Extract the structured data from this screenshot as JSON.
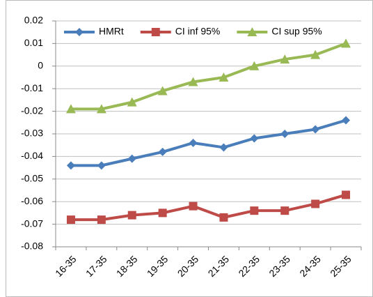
{
  "chart_data": {
    "type": "line",
    "categories": [
      "16-35",
      "17-35",
      "18-35",
      "19-35",
      "20-35",
      "21-35",
      "22-35",
      "23-35",
      "24-35",
      "25-35"
    ],
    "series": [
      {
        "name": "HMRt",
        "color": "#4a7ebb",
        "marker": "diamond",
        "values": [
          -0.044,
          -0.044,
          -0.041,
          -0.038,
          -0.034,
          -0.036,
          -0.032,
          -0.03,
          -0.028,
          -0.024
        ]
      },
      {
        "name": "CI inf 95%",
        "color": "#be4b48",
        "marker": "square",
        "values": [
          -0.068,
          -0.068,
          -0.066,
          -0.065,
          -0.062,
          -0.067,
          -0.064,
          -0.064,
          -0.061,
          -0.057
        ]
      },
      {
        "name": "CI sup 95%",
        "color": "#98b954",
        "marker": "triangle",
        "values": [
          -0.019,
          -0.019,
          -0.016,
          -0.011,
          -0.007,
          -0.005,
          0.0,
          0.003,
          0.005,
          0.01
        ]
      }
    ],
    "ylim": [
      -0.08,
      0.02
    ],
    "yticks": [
      -0.08,
      -0.07,
      -0.06,
      -0.05,
      -0.04,
      -0.03,
      -0.02,
      -0.01,
      0,
      0.01,
      0.02
    ],
    "grid": true,
    "legend": "top"
  }
}
